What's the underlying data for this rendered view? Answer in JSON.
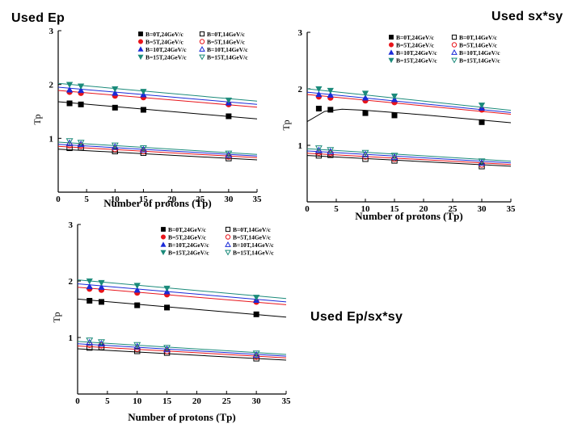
{
  "captions": {
    "top_left": "Used Ep",
    "top_right": "Used sx*sy",
    "bottom_right": "Used Ep/sx*sy"
  },
  "series_styles": [
    {
      "name": "B=0T,24GeV/c",
      "color": "#000000",
      "marker": "square",
      "filled": true
    },
    {
      "name": "B=5T,24GeV/c",
      "color": "#e8141a",
      "marker": "circle",
      "filled": true
    },
    {
      "name": "B=10T,24GeV/c",
      "color": "#1a2ad8",
      "marker": "triangle",
      "filled": true
    },
    {
      "name": "B=15T,24GeV/c",
      "color": "#1a8a7a",
      "marker": "tri-down",
      "filled": true
    },
    {
      "name": "B=0T,14GeV/c",
      "color": "#000000",
      "marker": "square",
      "filled": false
    },
    {
      "name": "B=5T,14GeV/c",
      "color": "#e8141a",
      "marker": "circle",
      "filled": false
    },
    {
      "name": "B=10T,14GeV/c",
      "color": "#1a2ad8",
      "marker": "triangle",
      "filled": false
    },
    {
      "name": "B=15T,14GeV/c",
      "color": "#1a8a7a",
      "marker": "tri-down",
      "filled": false
    }
  ],
  "chart_data": [
    {
      "type": "scatter",
      "caption": "Used Ep",
      "xlabel": "Number of protons (Tp)",
      "ylabel": "Tp",
      "xlim": [
        0,
        35
      ],
      "ylim": [
        0,
        3
      ],
      "xticks": [
        0,
        5,
        10,
        15,
        20,
        25,
        30,
        35
      ],
      "yticks": [
        1,
        2,
        3
      ],
      "x": [
        2,
        4,
        10,
        15,
        30
      ],
      "series": [
        {
          "name": "B=0T,24GeV/c",
          "values": [
            1.65,
            1.63,
            1.57,
            1.53,
            1.41
          ]
        },
        {
          "name": "B=5T,24GeV/c",
          "values": [
            1.86,
            1.84,
            1.79,
            1.76,
            1.63
          ]
        },
        {
          "name": "B=10T,24GeV/c",
          "values": [
            1.9,
            1.89,
            1.84,
            1.81,
            1.66
          ]
        },
        {
          "name": "B=15T,24GeV/c",
          "values": [
            2.0,
            1.97,
            1.92,
            1.87,
            1.71
          ]
        },
        {
          "name": "B=0T,14GeV/c",
          "values": [
            0.82,
            0.83,
            0.76,
            0.73,
            0.63
          ]
        },
        {
          "name": "B=5T,14GeV/c",
          "values": [
            0.87,
            0.86,
            0.8,
            0.76,
            0.66
          ]
        },
        {
          "name": "B=10T,14GeV/c",
          "values": [
            0.91,
            0.89,
            0.84,
            0.79,
            0.69
          ]
        },
        {
          "name": "B=15T,14GeV/c",
          "values": [
            0.95,
            0.92,
            0.87,
            0.82,
            0.72
          ]
        }
      ],
      "fits": [
        {
          "name": "B=0T,24GeV/c",
          "curve": [
            [
              0,
              1.68
            ],
            [
              35,
              1.36
            ]
          ]
        },
        {
          "name": "B=5T,24GeV/c",
          "curve": [
            [
              0,
              1.89
            ],
            [
              35,
              1.58
            ]
          ]
        },
        {
          "name": "B=10T,24GeV/c",
          "curve": [
            [
              0,
              1.95
            ],
            [
              35,
              1.63
            ]
          ]
        },
        {
          "name": "B=15T,24GeV/c",
          "curve": [
            [
              0,
              2.02
            ],
            [
              35,
              1.69
            ]
          ]
        },
        {
          "name": "B=0T,14GeV/c",
          "curve": [
            [
              0,
              0.8
            ],
            [
              35,
              0.6
            ]
          ]
        },
        {
          "name": "B=5T,14GeV/c",
          "curve": [
            [
              0,
              0.85
            ],
            [
              35,
              0.64
            ]
          ]
        },
        {
          "name": "B=10T,14GeV/c",
          "curve": [
            [
              0,
              0.89
            ],
            [
              35,
              0.67
            ]
          ]
        },
        {
          "name": "B=15T,14GeV/c",
          "curve": [
            [
              0,
              0.93
            ],
            [
              35,
              0.7
            ]
          ]
        }
      ]
    },
    {
      "type": "scatter",
      "caption": "Used sx*sy",
      "xlabel": "Number of protons (Tp)",
      "ylabel": "Tp",
      "xlim": [
        0,
        35
      ],
      "ylim": [
        0,
        3
      ],
      "xticks": [
        0,
        5,
        10,
        15,
        20,
        25,
        30,
        35
      ],
      "yticks": [
        1,
        2,
        3
      ],
      "x": [
        2,
        4,
        10,
        15,
        30
      ],
      "series": [
        {
          "name": "B=0T,24GeV/c",
          "values": [
            1.65,
            1.63,
            1.57,
            1.53,
            1.41
          ]
        },
        {
          "name": "B=5T,24GeV/c",
          "values": [
            1.86,
            1.84,
            1.79,
            1.76,
            1.63
          ]
        },
        {
          "name": "B=10T,24GeV/c",
          "values": [
            1.9,
            1.89,
            1.84,
            1.81,
            1.66
          ]
        },
        {
          "name": "B=15T,24GeV/c",
          "values": [
            2.0,
            1.97,
            1.92,
            1.87,
            1.71
          ]
        },
        {
          "name": "B=0T,14GeV/c",
          "values": [
            0.82,
            0.83,
            0.76,
            0.73,
            0.63
          ]
        },
        {
          "name": "B=5T,14GeV/c",
          "values": [
            0.87,
            0.86,
            0.8,
            0.76,
            0.66
          ]
        },
        {
          "name": "B=10T,14GeV/c",
          "values": [
            0.91,
            0.89,
            0.84,
            0.79,
            0.69
          ]
        },
        {
          "name": "B=15T,14GeV/c",
          "values": [
            0.95,
            0.92,
            0.87,
            0.82,
            0.72
          ]
        }
      ],
      "fits": [
        {
          "name": "B=0T,24GeV/c",
          "curve": [
            [
              0,
              1.42
            ],
            [
              3,
              1.6
            ],
            [
              6,
              1.64
            ],
            [
              10,
              1.62
            ],
            [
              20,
              1.54
            ],
            [
              35,
              1.4
            ]
          ]
        },
        {
          "name": "B=5T,24GeV/c",
          "curve": [
            [
              0,
              1.9
            ],
            [
              35,
              1.55
            ]
          ]
        },
        {
          "name": "B=10T,24GeV/c",
          "curve": [
            [
              0,
              1.94
            ],
            [
              35,
              1.58
            ]
          ]
        },
        {
          "name": "B=15T,24GeV/c",
          "curve": [
            [
              0,
              2.0
            ],
            [
              35,
              1.62
            ]
          ]
        },
        {
          "name": "B=0T,14GeV/c",
          "curve": [
            [
              0,
              0.82
            ],
            [
              35,
              0.63
            ]
          ]
        },
        {
          "name": "B=5T,14GeV/c",
          "curve": [
            [
              0,
              0.86
            ],
            [
              35,
              0.66
            ]
          ]
        },
        {
          "name": "B=10T,14GeV/c",
          "curve": [
            [
              0,
              0.9
            ],
            [
              35,
              0.69
            ]
          ]
        },
        {
          "name": "B=15T,14GeV/c",
          "curve": [
            [
              0,
              0.94
            ],
            [
              35,
              0.72
            ]
          ]
        }
      ]
    },
    {
      "type": "scatter",
      "caption": "Used Ep/sx*sy",
      "xlabel": "Number of protons (Tp)",
      "ylabel": "Tp",
      "xlim": [
        0,
        35
      ],
      "ylim": [
        0,
        3
      ],
      "xticks": [
        0,
        5,
        10,
        15,
        20,
        25,
        30,
        35
      ],
      "yticks": [
        1,
        2,
        3
      ],
      "x": [
        2,
        4,
        10,
        15,
        30
      ],
      "series": [
        {
          "name": "B=0T,24GeV/c",
          "values": [
            1.65,
            1.63,
            1.57,
            1.53,
            1.41
          ]
        },
        {
          "name": "B=5T,24GeV/c",
          "values": [
            1.86,
            1.84,
            1.79,
            1.76,
            1.63
          ]
        },
        {
          "name": "B=10T,24GeV/c",
          "values": [
            1.9,
            1.89,
            1.84,
            1.81,
            1.66
          ]
        },
        {
          "name": "B=15T,24GeV/c",
          "values": [
            2.0,
            1.97,
            1.92,
            1.87,
            1.71
          ]
        },
        {
          "name": "B=0T,14GeV/c",
          "values": [
            0.82,
            0.83,
            0.76,
            0.73,
            0.63
          ]
        },
        {
          "name": "B=5T,14GeV/c",
          "values": [
            0.87,
            0.86,
            0.8,
            0.76,
            0.66
          ]
        },
        {
          "name": "B=10T,14GeV/c",
          "values": [
            0.91,
            0.89,
            0.84,
            0.79,
            0.69
          ]
        },
        {
          "name": "B=15T,14GeV/c",
          "values": [
            0.95,
            0.92,
            0.87,
            0.82,
            0.72
          ]
        }
      ],
      "fits": [
        {
          "name": "B=0T,24GeV/c",
          "curve": [
            [
              0,
              1.68
            ],
            [
              35,
              1.36
            ]
          ]
        },
        {
          "name": "B=5T,24GeV/c",
          "curve": [
            [
              0,
              1.89
            ],
            [
              35,
              1.58
            ]
          ]
        },
        {
          "name": "B=10T,24GeV/c",
          "curve": [
            [
              0,
              1.95
            ],
            [
              35,
              1.63
            ]
          ]
        },
        {
          "name": "B=15T,24GeV/c",
          "curve": [
            [
              0,
              2.02
            ],
            [
              35,
              1.69
            ]
          ]
        },
        {
          "name": "B=0T,14GeV/c",
          "curve": [
            [
              0,
              0.8
            ],
            [
              35,
              0.6
            ]
          ]
        },
        {
          "name": "B=5T,14GeV/c",
          "curve": [
            [
              0,
              0.85
            ],
            [
              35,
              0.64
            ]
          ]
        },
        {
          "name": "B=10T,14GeV/c",
          "curve": [
            [
              0,
              0.89
            ],
            [
              35,
              0.67
            ]
          ]
        },
        {
          "name": "B=15T,14GeV/c",
          "curve": [
            [
              0,
              0.93
            ],
            [
              35,
              0.7
            ]
          ]
        }
      ]
    }
  ]
}
